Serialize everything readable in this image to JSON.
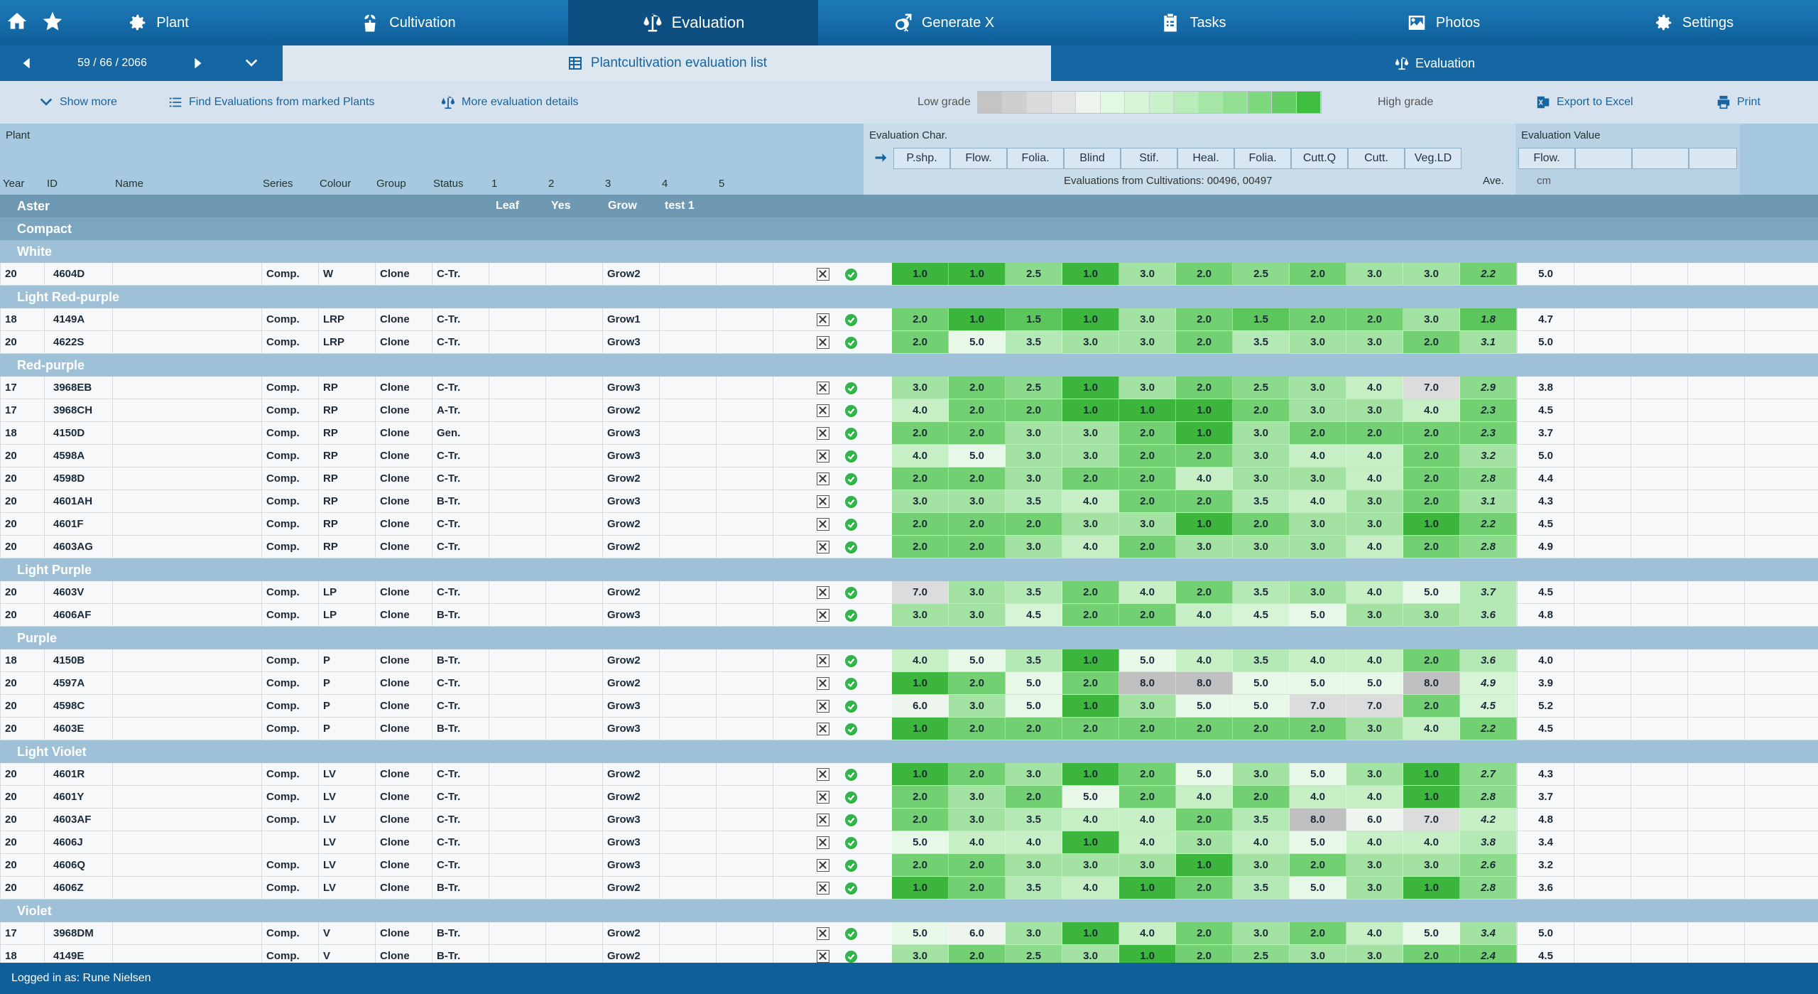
{
  "nav": {
    "tabs": [
      {
        "label": "Plant",
        "icon": "gear-icon"
      },
      {
        "label": "Cultivation",
        "icon": "plant-pot-icon"
      },
      {
        "label": "Evaluation",
        "icon": "scale-icon"
      },
      {
        "label": "Generate X",
        "icon": "gender-icon"
      },
      {
        "label": "Tasks",
        "icon": "clipboard-icon"
      },
      {
        "label": "Photos",
        "icon": "image-icon"
      },
      {
        "label": "Settings",
        "icon": "gear-icon"
      }
    ]
  },
  "subbar": {
    "counter": "59 / 66 / 2066",
    "list_tab": "Plantcultivation evaluation list",
    "eval_tab": "Evaluation"
  },
  "toolbar": {
    "show_more": "Show more",
    "find_evals": "Find Evaluations from marked Plants",
    "more_details": "More evaluation details",
    "low_grade": "Low grade",
    "high_grade": "High grade",
    "export": "Export to Excel",
    "print": "Print"
  },
  "grade_colors": [
    "#c4c4c4",
    "#cfcfcf",
    "#dadada",
    "#e3e3e3",
    "#eef5ee",
    "#e3f8e3",
    "#d6f5d6",
    "#c9f2c9",
    "#b8ecb8",
    "#a6e6a6",
    "#93df93",
    "#7dd77d",
    "#63cc63",
    "#40be40"
  ],
  "header": {
    "plant": "Plant",
    "eval_char": "Evaluation Char.",
    "eval_value": "Evaluation Value",
    "from_cultivations": "Evaluations from Cultivations:  00496, 00497",
    "ave": "Ave.",
    "unit": "cm",
    "columns": [
      "Year",
      "ID",
      "Name",
      "Series",
      "Colour",
      "Group",
      "Status",
      "1",
      "2",
      "3",
      "4",
      "5"
    ],
    "subheaders": [
      "Leaf",
      "Yes",
      "Grow",
      "test 1"
    ],
    "chars": [
      "P.shp.",
      "Flow.",
      "Folia.",
      "Blind",
      "Stif.",
      "Heal.",
      "Folia.",
      "Cutt.Q",
      "Cutt.",
      "Veg.LD"
    ],
    "value_cols": [
      "Flow."
    ]
  },
  "groups": [
    {
      "level": 1,
      "label": "Aster"
    },
    {
      "level": 2,
      "label": "Compact"
    }
  ],
  "sections": [
    {
      "label": "White",
      "rows": [
        {
          "year": "20",
          "id": "4604D",
          "series": "Comp.",
          "colour": "W",
          "group": "Clone",
          "status": "C-Tr.",
          "c3": "Grow2",
          "grades": [
            "1.0",
            "1.0",
            "2.5",
            "1.0",
            "3.0",
            "2.0",
            "2.5",
            "2.0",
            "3.0",
            "3.0"
          ],
          "ave": "2.2",
          "value": "5.0"
        }
      ]
    },
    {
      "label": "Light Red-purple",
      "rows": [
        {
          "year": "18",
          "id": "4149A",
          "series": "Comp.",
          "colour": "LRP",
          "group": "Clone",
          "status": "C-Tr.",
          "c3": "Grow1",
          "grades": [
            "2.0",
            "1.0",
            "1.5",
            "1.0",
            "3.0",
            "2.0",
            "1.5",
            "2.0",
            "2.0",
            "3.0"
          ],
          "ave": "1.8",
          "value": "4.7"
        },
        {
          "year": "20",
          "id": "4622S",
          "series": "Comp.",
          "colour": "LRP",
          "group": "Clone",
          "status": "C-Tr.",
          "c3": "Grow3",
          "grades": [
            "2.0",
            "5.0",
            "3.5",
            "3.0",
            "3.0",
            "2.0",
            "3.5",
            "3.0",
            "3.0",
            "2.0"
          ],
          "ave": "3.1",
          "value": "5.0"
        }
      ]
    },
    {
      "label": "Red-purple",
      "rows": [
        {
          "year": "17",
          "id": "3968EB",
          "series": "Comp.",
          "colour": "RP",
          "group": "Clone",
          "status": "C-Tr.",
          "c3": "Grow3",
          "grades": [
            "3.0",
            "2.0",
            "2.5",
            "1.0",
            "3.0",
            "2.0",
            "2.5",
            "3.0",
            "4.0",
            "7.0"
          ],
          "ave": "2.9",
          "value": "3.8"
        },
        {
          "year": "17",
          "id": "3968CH",
          "series": "Comp.",
          "colour": "RP",
          "group": "Clone",
          "status": "A-Tr.",
          "c3": "Grow2",
          "grades": [
            "4.0",
            "2.0",
            "2.0",
            "1.0",
            "1.0",
            "1.0",
            "2.0",
            "3.0",
            "3.0",
            "4.0"
          ],
          "ave": "2.3",
          "value": "4.5"
        },
        {
          "year": "18",
          "id": "4150D",
          "series": "Comp.",
          "colour": "RP",
          "group": "Clone",
          "status": "Gen.",
          "c3": "Grow3",
          "grades": [
            "2.0",
            "2.0",
            "3.0",
            "3.0",
            "2.0",
            "1.0",
            "3.0",
            "2.0",
            "2.0",
            "2.0"
          ],
          "ave": "2.3",
          "value": "3.7"
        },
        {
          "year": "20",
          "id": "4598A",
          "series": "Comp.",
          "colour": "RP",
          "group": "Clone",
          "status": "C-Tr.",
          "c3": "Grow3",
          "grades": [
            "4.0",
            "5.0",
            "3.0",
            "3.0",
            "2.0",
            "2.0",
            "3.0",
            "4.0",
            "4.0",
            "2.0"
          ],
          "ave": "3.2",
          "value": "5.0"
        },
        {
          "year": "20",
          "id": "4598D",
          "series": "Comp.",
          "colour": "RP",
          "group": "Clone",
          "status": "C-Tr.",
          "c3": "Grow2",
          "grades": [
            "2.0",
            "2.0",
            "3.0",
            "2.0",
            "2.0",
            "4.0",
            "3.0",
            "3.0",
            "4.0",
            "2.0"
          ],
          "ave": "2.8",
          "value": "4.4"
        },
        {
          "year": "20",
          "id": "4601AH",
          "series": "Comp.",
          "colour": "RP",
          "group": "Clone",
          "status": "B-Tr.",
          "c3": "Grow3",
          "grades": [
            "3.0",
            "3.0",
            "3.5",
            "4.0",
            "2.0",
            "2.0",
            "3.5",
            "4.0",
            "3.0",
            "2.0"
          ],
          "ave": "3.1",
          "value": "4.3"
        },
        {
          "year": "20",
          "id": "4601F",
          "series": "Comp.",
          "colour": "RP",
          "group": "Clone",
          "status": "C-Tr.",
          "c3": "Grow2",
          "grades": [
            "2.0",
            "2.0",
            "2.0",
            "3.0",
            "3.0",
            "1.0",
            "2.0",
            "3.0",
            "3.0",
            "1.0"
          ],
          "ave": "2.2",
          "value": "4.5"
        },
        {
          "year": "20",
          "id": "4603AG",
          "series": "Comp.",
          "colour": "RP",
          "group": "Clone",
          "status": "C-Tr.",
          "c3": "Grow2",
          "grades": [
            "2.0",
            "2.0",
            "3.0",
            "4.0",
            "2.0",
            "3.0",
            "3.0",
            "3.0",
            "4.0",
            "2.0"
          ],
          "ave": "2.8",
          "value": "4.9"
        }
      ]
    },
    {
      "label": "Light Purple",
      "rows": [
        {
          "year": "20",
          "id": "4603V",
          "series": "Comp.",
          "colour": "LP",
          "group": "Clone",
          "status": "C-Tr.",
          "c3": "Grow2",
          "grades": [
            "7.0",
            "3.0",
            "3.5",
            "2.0",
            "4.0",
            "2.0",
            "3.5",
            "3.0",
            "4.0",
            "5.0"
          ],
          "ave": "3.7",
          "value": "4.5"
        },
        {
          "year": "20",
          "id": "4606AF",
          "series": "Comp.",
          "colour": "LP",
          "group": "Clone",
          "status": "B-Tr.",
          "c3": "Grow3",
          "grades": [
            "3.0",
            "3.0",
            "4.5",
            "2.0",
            "2.0",
            "4.0",
            "4.5",
            "5.0",
            "3.0",
            "3.0"
          ],
          "ave": "3.6",
          "value": "4.8"
        }
      ]
    },
    {
      "label": "Purple",
      "rows": [
        {
          "year": "18",
          "id": "4150B",
          "series": "Comp.",
          "colour": "P",
          "group": "Clone",
          "status": "B-Tr.",
          "c3": "Grow2",
          "grades": [
            "4.0",
            "5.0",
            "3.5",
            "1.0",
            "5.0",
            "4.0",
            "3.5",
            "4.0",
            "4.0",
            "2.0"
          ],
          "ave": "3.6",
          "value": "4.0"
        },
        {
          "year": "20",
          "id": "4597A",
          "series": "Comp.",
          "colour": "P",
          "group": "Clone",
          "status": "C-Tr.",
          "c3": "Grow2",
          "grades": [
            "1.0",
            "2.0",
            "5.0",
            "2.0",
            "8.0",
            "8.0",
            "5.0",
            "5.0",
            "5.0",
            "8.0"
          ],
          "ave": "4.9",
          "value": "3.9"
        },
        {
          "year": "20",
          "id": "4598C",
          "series": "Comp.",
          "colour": "P",
          "group": "Clone",
          "status": "C-Tr.",
          "c3": "Grow3",
          "grades": [
            "6.0",
            "3.0",
            "5.0",
            "1.0",
            "3.0",
            "5.0",
            "5.0",
            "7.0",
            "7.0",
            "2.0"
          ],
          "ave": "4.5",
          "value": "5.2"
        },
        {
          "year": "20",
          "id": "4603E",
          "series": "Comp.",
          "colour": "P",
          "group": "Clone",
          "status": "B-Tr.",
          "c3": "Grow3",
          "grades": [
            "1.0",
            "2.0",
            "2.0",
            "2.0",
            "2.0",
            "2.0",
            "2.0",
            "2.0",
            "3.0",
            "4.0"
          ],
          "ave": "2.2",
          "value": "4.5"
        }
      ]
    },
    {
      "label": "Light Violet",
      "rows": [
        {
          "year": "20",
          "id": "4601R",
          "series": "Comp.",
          "colour": "LV",
          "group": "Clone",
          "status": "C-Tr.",
          "c3": "Grow2",
          "grades": [
            "1.0",
            "2.0",
            "3.0",
            "1.0",
            "2.0",
            "5.0",
            "3.0",
            "5.0",
            "3.0",
            "1.0"
          ],
          "ave": "2.7",
          "value": "4.3"
        },
        {
          "year": "20",
          "id": "4601Y",
          "series": "Comp.",
          "colour": "LV",
          "group": "Clone",
          "status": "C-Tr.",
          "c3": "Grow2",
          "grades": [
            "2.0",
            "3.0",
            "2.0",
            "5.0",
            "2.0",
            "4.0",
            "2.0",
            "4.0",
            "4.0",
            "1.0"
          ],
          "ave": "2.8",
          "value": "3.7"
        },
        {
          "year": "20",
          "id": "4603AF",
          "series": "Comp.",
          "colour": "LV",
          "group": "Clone",
          "status": "C-Tr.",
          "c3": "Grow3",
          "grades": [
            "2.0",
            "3.0",
            "3.5",
            "4.0",
            "4.0",
            "2.0",
            "3.5",
            "8.0",
            "6.0",
            "7.0"
          ],
          "ave": "4.2",
          "value": "4.8"
        },
        {
          "year": "20",
          "id": "4606J",
          "series": "",
          "colour": "LV",
          "group": "Clone",
          "status": "C-Tr.",
          "c3": "Grow3",
          "grades": [
            "5.0",
            "4.0",
            "4.0",
            "1.0",
            "4.0",
            "3.0",
            "4.0",
            "5.0",
            "4.0",
            "4.0"
          ],
          "ave": "3.8",
          "value": "3.4"
        },
        {
          "year": "20",
          "id": "4606Q",
          "series": "Comp.",
          "colour": "LV",
          "group": "Clone",
          "status": "C-Tr.",
          "c3": "Grow3",
          "grades": [
            "2.0",
            "2.0",
            "3.0",
            "3.0",
            "3.0",
            "1.0",
            "3.0",
            "2.0",
            "3.0",
            "3.0"
          ],
          "ave": "2.6",
          "value": "3.2"
        },
        {
          "year": "20",
          "id": "4606Z",
          "series": "Comp.",
          "colour": "LV",
          "group": "Clone",
          "status": "B-Tr.",
          "c3": "Grow2",
          "grades": [
            "1.0",
            "2.0",
            "3.5",
            "4.0",
            "1.0",
            "2.0",
            "3.5",
            "5.0",
            "3.0",
            "1.0"
          ],
          "ave": "2.8",
          "value": "3.6"
        }
      ]
    },
    {
      "label": "Violet",
      "rows": [
        {
          "year": "17",
          "id": "3968DM",
          "series": "Comp.",
          "colour": "V",
          "group": "Clone",
          "status": "B-Tr.",
          "c3": "Grow2",
          "grades": [
            "5.0",
            "6.0",
            "3.0",
            "1.0",
            "4.0",
            "2.0",
            "3.0",
            "2.0",
            "4.0",
            "5.0"
          ],
          "ave": "3.4",
          "value": "5.0"
        },
        {
          "year": "18",
          "id": "4149E",
          "series": "Comp.",
          "colour": "V",
          "group": "Clone",
          "status": "B-Tr.",
          "c3": "Grow2",
          "grades": [
            "3.0",
            "2.0",
            "2.5",
            "3.0",
            "1.0",
            "2.0",
            "2.5",
            "3.0",
            "3.0",
            "2.0"
          ],
          "ave": "2.4",
          "value": "4.5"
        }
      ]
    }
  ],
  "footer": {
    "logged_in": "Logged in as: Rune Nielsen"
  }
}
